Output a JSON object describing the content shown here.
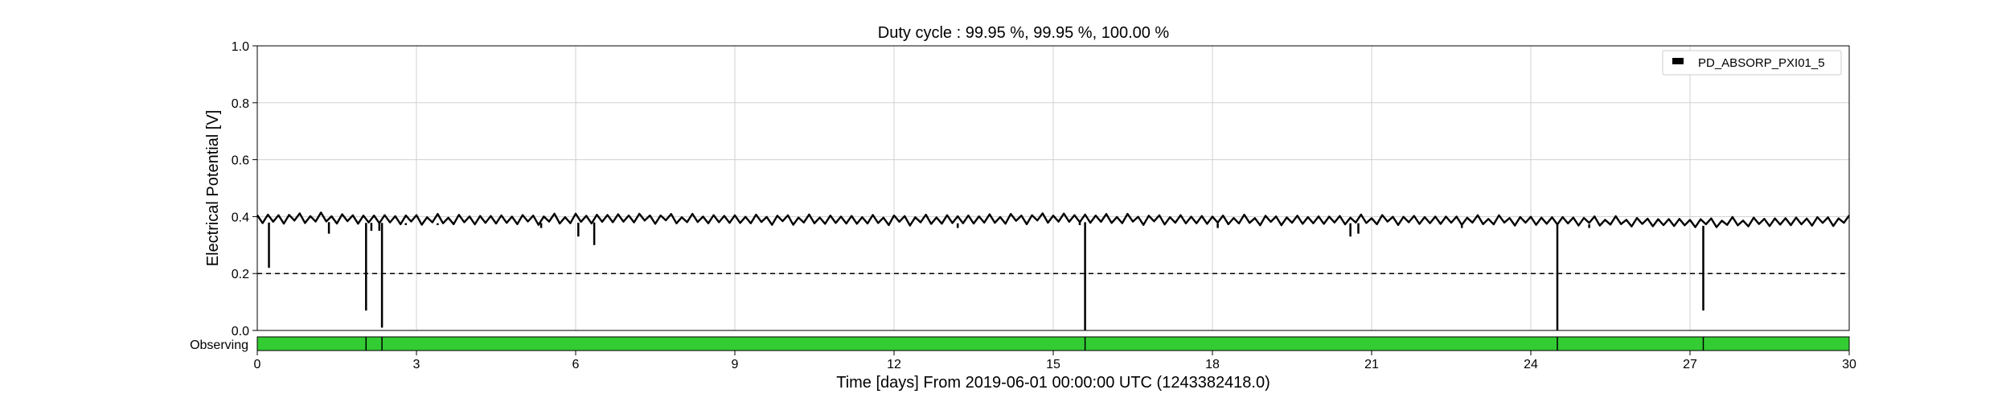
{
  "chart_data": {
    "type": "line",
    "title": "Duty cycle : 99.95 %, 99.95 %, 100.00 %",
    "xlabel": "Time [days] From 2019-06-01 00:00:00 UTC (1243382418.0)",
    "ylabel": "Electrical Potential [V]",
    "xlim": [
      0,
      30
    ],
    "ylim": [
      0.0,
      1.0
    ],
    "x_ticks": [
      0,
      3,
      6,
      9,
      12,
      15,
      18,
      21,
      24,
      27,
      30
    ],
    "x_tick_labels": [
      "0",
      "3",
      "6",
      "9",
      "12",
      "15",
      "18",
      "21",
      "24",
      "27",
      "30"
    ],
    "y_ticks": [
      0.0,
      0.2,
      0.4,
      0.6,
      0.8,
      1.0
    ],
    "y_tick_labels": [
      "0.0",
      "0.2",
      "0.4",
      "0.6",
      "0.8",
      "1.0"
    ],
    "grid": true,
    "legend_position": "top-right",
    "series": [
      {
        "name": "PD_ABSORP_PXI01_5",
        "color": "#000000",
        "band": {
          "x": [
            0,
            1,
            2,
            3,
            4,
            5,
            6,
            7,
            8,
            9,
            10,
            11,
            12,
            13,
            14,
            15,
            16,
            17,
            18,
            19,
            20,
            21,
            22,
            23,
            24,
            25,
            26,
            27,
            28,
            29,
            30
          ],
          "upper": [
            0.405,
            0.408,
            0.404,
            0.403,
            0.402,
            0.403,
            0.405,
            0.407,
            0.404,
            0.403,
            0.402,
            0.401,
            0.401,
            0.402,
            0.404,
            0.408,
            0.405,
            0.402,
            0.401,
            0.4,
            0.4,
            0.401,
            0.4,
            0.399,
            0.398,
            0.397,
            0.393,
            0.39,
            0.392,
            0.395,
            0.398
          ],
          "lower": [
            0.378,
            0.382,
            0.378,
            0.377,
            0.376,
            0.377,
            0.378,
            0.382,
            0.38,
            0.378,
            0.377,
            0.376,
            0.375,
            0.376,
            0.378,
            0.382,
            0.379,
            0.377,
            0.376,
            0.375,
            0.376,
            0.377,
            0.376,
            0.375,
            0.374,
            0.373,
            0.37,
            0.367,
            0.369,
            0.371,
            0.374
          ]
        },
        "dips": [
          {
            "x": 0.22,
            "y": 0.22
          },
          {
            "x": 1.35,
            "y": 0.34
          },
          {
            "x": 2.05,
            "y": 0.07
          },
          {
            "x": 2.15,
            "y": 0.35
          },
          {
            "x": 2.3,
            "y": 0.35
          },
          {
            "x": 2.35,
            "y": 0.01
          },
          {
            "x": 2.8,
            "y": 0.37
          },
          {
            "x": 3.4,
            "y": 0.37
          },
          {
            "x": 5.35,
            "y": 0.36
          },
          {
            "x": 6.05,
            "y": 0.33
          },
          {
            "x": 6.35,
            "y": 0.3
          },
          {
            "x": 13.2,
            "y": 0.36
          },
          {
            "x": 15.5,
            "y": 0.37
          },
          {
            "x": 15.6,
            "y": 0.0
          },
          {
            "x": 18.1,
            "y": 0.36
          },
          {
            "x": 20.6,
            "y": 0.33
          },
          {
            "x": 20.75,
            "y": 0.34
          },
          {
            "x": 22.7,
            "y": 0.36
          },
          {
            "x": 24.5,
            "y": 0.0
          },
          {
            "x": 25.1,
            "y": 0.36
          },
          {
            "x": 27.25,
            "y": 0.07
          }
        ]
      }
    ],
    "threshold": {
      "y": 0.2,
      "style": "dashed",
      "color": "#000000"
    },
    "segments": {
      "label": "Observing",
      "color": "#33cc33",
      "active": [
        [
          0,
          30
        ]
      ],
      "markers": [
        2.05,
        2.35,
        15.6,
        24.5,
        27.25
      ]
    }
  }
}
